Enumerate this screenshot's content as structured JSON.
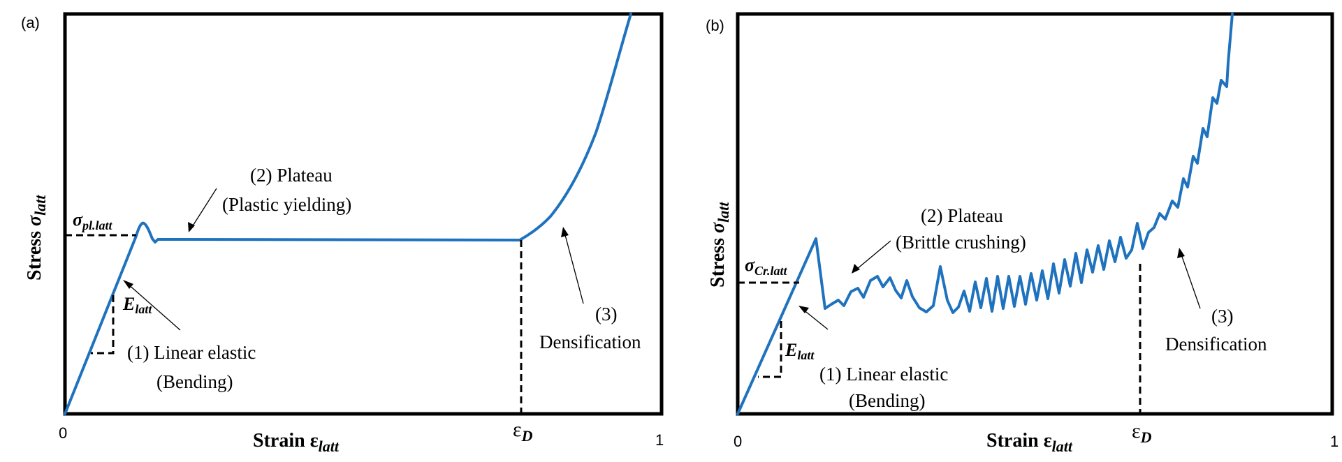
{
  "panels": [
    {
      "panel_label": "(a)",
      "y_axis_label": {
        "prefix": "Stress ",
        "symbol": "σ",
        "subscript": "latt"
      },
      "x_axis_label": {
        "prefix": "Strain ",
        "symbol": "ε",
        "subscript": "latt"
      },
      "x_tick_zero": "0",
      "x_tick_one": "1",
      "x_tick_d": {
        "symbol": "ε",
        "subscript": "D"
      },
      "stress_marker": {
        "symbol": "σ",
        "subscript": "pl.latt"
      },
      "modulus_marker": {
        "symbol": "E",
        "subscript": "latt"
      },
      "region1": [
        "(1) Linear elastic",
        "(Bending)"
      ],
      "region2": [
        "(2) Plateau",
        "(Plastic yielding)"
      ],
      "region3": [
        "(3)",
        "Densification"
      ],
      "curve_color": "#1f72be"
    },
    {
      "panel_label": "(b)",
      "y_axis_label": {
        "prefix": "Stress ",
        "symbol": "σ",
        "subscript": "latt"
      },
      "x_axis_label": {
        "prefix": "Strain ",
        "symbol": "ε",
        "subscript": "latt"
      },
      "x_tick_zero": "0",
      "x_tick_one": "1",
      "x_tick_d": {
        "symbol": "ε",
        "subscript": "D"
      },
      "stress_marker": {
        "symbol": "σ",
        "subscript": "Cr.latt"
      },
      "modulus_marker": {
        "symbol": "E",
        "subscript": "latt"
      },
      "region1": [
        "(1) Linear elastic",
        "(Bending)"
      ],
      "region2": [
        "(2) Plateau",
        "(Brittle crushing)"
      ],
      "region3": [
        "(3)",
        "Densification"
      ],
      "curve_color": "#1f72be"
    }
  ]
}
